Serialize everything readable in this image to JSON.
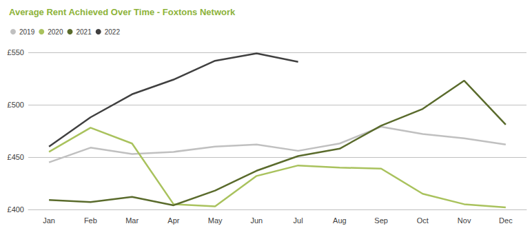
{
  "chart_data": {
    "type": "line",
    "title": "Average Rent Achieved Over Time - Foxtons Network",
    "categories": [
      "Jan",
      "Feb",
      "Mar",
      "Apr",
      "May",
      "Jun",
      "Jul",
      "Aug",
      "Sep",
      "Oct",
      "Nov",
      "Dec"
    ],
    "series": [
      {
        "name": "2019",
        "color": "#c0c0c0",
        "values": [
          445,
          459,
          453,
          455,
          460,
          462,
          456,
          463,
          479,
          472,
          468,
          462
        ]
      },
      {
        "name": "2020",
        "color": "#a9c25d",
        "values": [
          455,
          478,
          463,
          405,
          403,
          432,
          442,
          440,
          439,
          415,
          405,
          402
        ]
      },
      {
        "name": "2021",
        "color": "#5a6b2c",
        "values": [
          409,
          407,
          412,
          404,
          418,
          437,
          451,
          458,
          480,
          496,
          523,
          481
        ]
      },
      {
        "name": "2022",
        "color": "#404040",
        "values": [
          460,
          488,
          510,
          524,
          542,
          549,
          541,
          null,
          null,
          null,
          null,
          null
        ]
      }
    ],
    "ylim": [
      400,
      550
    ],
    "yticks": [
      {
        "value": 400,
        "label": "£400"
      },
      {
        "value": 450,
        "label": "£450"
      },
      {
        "value": 500,
        "label": "£500"
      },
      {
        "value": 550,
        "label": "£550"
      }
    ],
    "grid": true,
    "legend": "top-left"
  }
}
